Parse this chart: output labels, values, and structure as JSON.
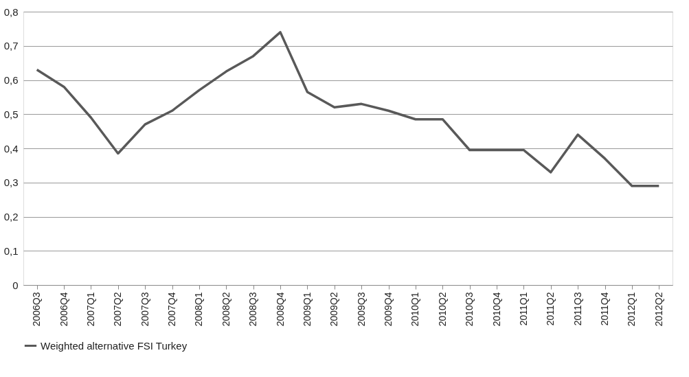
{
  "chart_data": {
    "type": "line",
    "categories": [
      "2006Q3",
      "2006Q4",
      "2007Q1",
      "2007Q2",
      "2007Q3",
      "2007Q4",
      "2008Q1",
      "2008Q2",
      "2008Q3",
      "2008Q4",
      "2009Q1",
      "2009Q2",
      "2009Q3",
      "2009Q4",
      "2010Q1",
      "2010Q2",
      "2010Q3",
      "2010Q4",
      "2011Q1",
      "2011Q2",
      "2011Q3",
      "2011Q4",
      "2012Q1",
      "2012Q2"
    ],
    "series": [
      {
        "name": "Weighted alternative FSI Turkey",
        "color": "#595959",
        "values": [
          0.63,
          0.58,
          0.49,
          0.385,
          0.47,
          0.51,
          0.57,
          0.625,
          0.67,
          0.74,
          0.565,
          0.52,
          0.53,
          0.51,
          0.485,
          0.485,
          0.395,
          0.395,
          0.395,
          0.33,
          0.44,
          0.37,
          0.29,
          0.29
        ]
      }
    ],
    "ylim": [
      0,
      0.8
    ],
    "yticks": [
      0,
      {
        "value": 0.1,
        "label": "0,1"
      },
      {
        "value": 0.2,
        "label": "0,2"
      },
      {
        "value": 0.3,
        "label": "0,3"
      },
      {
        "value": 0.4,
        "label": "0,4"
      },
      {
        "value": 0.5,
        "label": "0,5"
      },
      {
        "value": 0.6,
        "label": "0,6"
      },
      {
        "value": 0.7,
        "label": "0,7"
      },
      {
        "value": 0.8,
        "label": "0,8"
      }
    ],
    "grid": "y",
    "legend": "bottom",
    "marker": "none",
    "line_style": "solid"
  }
}
